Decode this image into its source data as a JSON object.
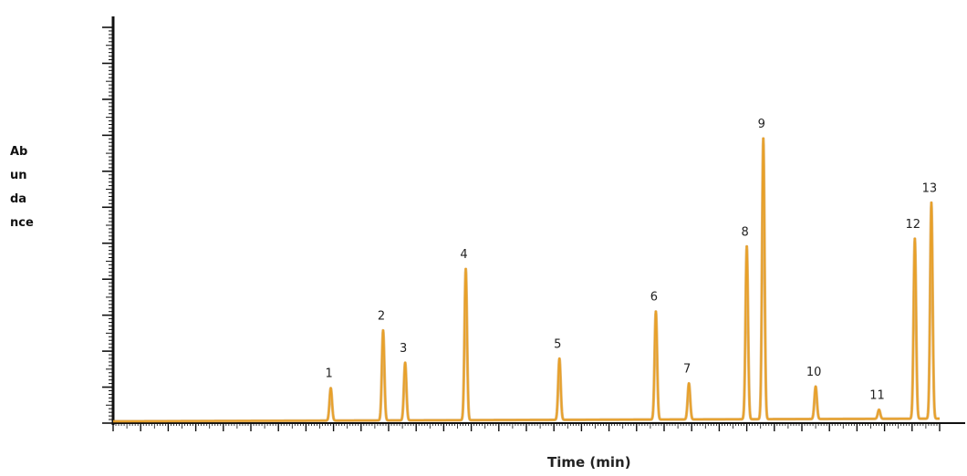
{
  "chart_data": {
    "type": "line",
    "title": "",
    "xlabel": "Time (min)",
    "ylabel": "Abundance",
    "xlim": [
      0,
      30
    ],
    "ylim": [
      0,
      11
    ],
    "grid": false,
    "colors": {
      "trace": "#e8a028",
      "trace_edge": "#c98010",
      "axis": "#111111"
    },
    "baseline": 0.05,
    "peaks": [
      {
        "label": "1",
        "x": 7.9,
        "y": 0.9
      },
      {
        "label": "2",
        "x": 9.8,
        "y": 2.5
      },
      {
        "label": "3",
        "x": 10.6,
        "y": 1.6
      },
      {
        "label": "4",
        "x": 12.8,
        "y": 4.2
      },
      {
        "label": "5",
        "x": 16.2,
        "y": 1.7
      },
      {
        "label": "6",
        "x": 19.7,
        "y": 3.0
      },
      {
        "label": "7",
        "x": 20.9,
        "y": 1.0
      },
      {
        "label": "8",
        "x": 23.0,
        "y": 4.8
      },
      {
        "label": "9",
        "x": 23.6,
        "y": 7.8
      },
      {
        "label": "10",
        "x": 25.5,
        "y": 0.9
      },
      {
        "label": "11",
        "x": 27.8,
        "y": 0.25
      },
      {
        "label": "12",
        "x": 29.1,
        "y": 5.0
      },
      {
        "label": "13",
        "x": 29.7,
        "y": 6.0
      }
    ]
  }
}
